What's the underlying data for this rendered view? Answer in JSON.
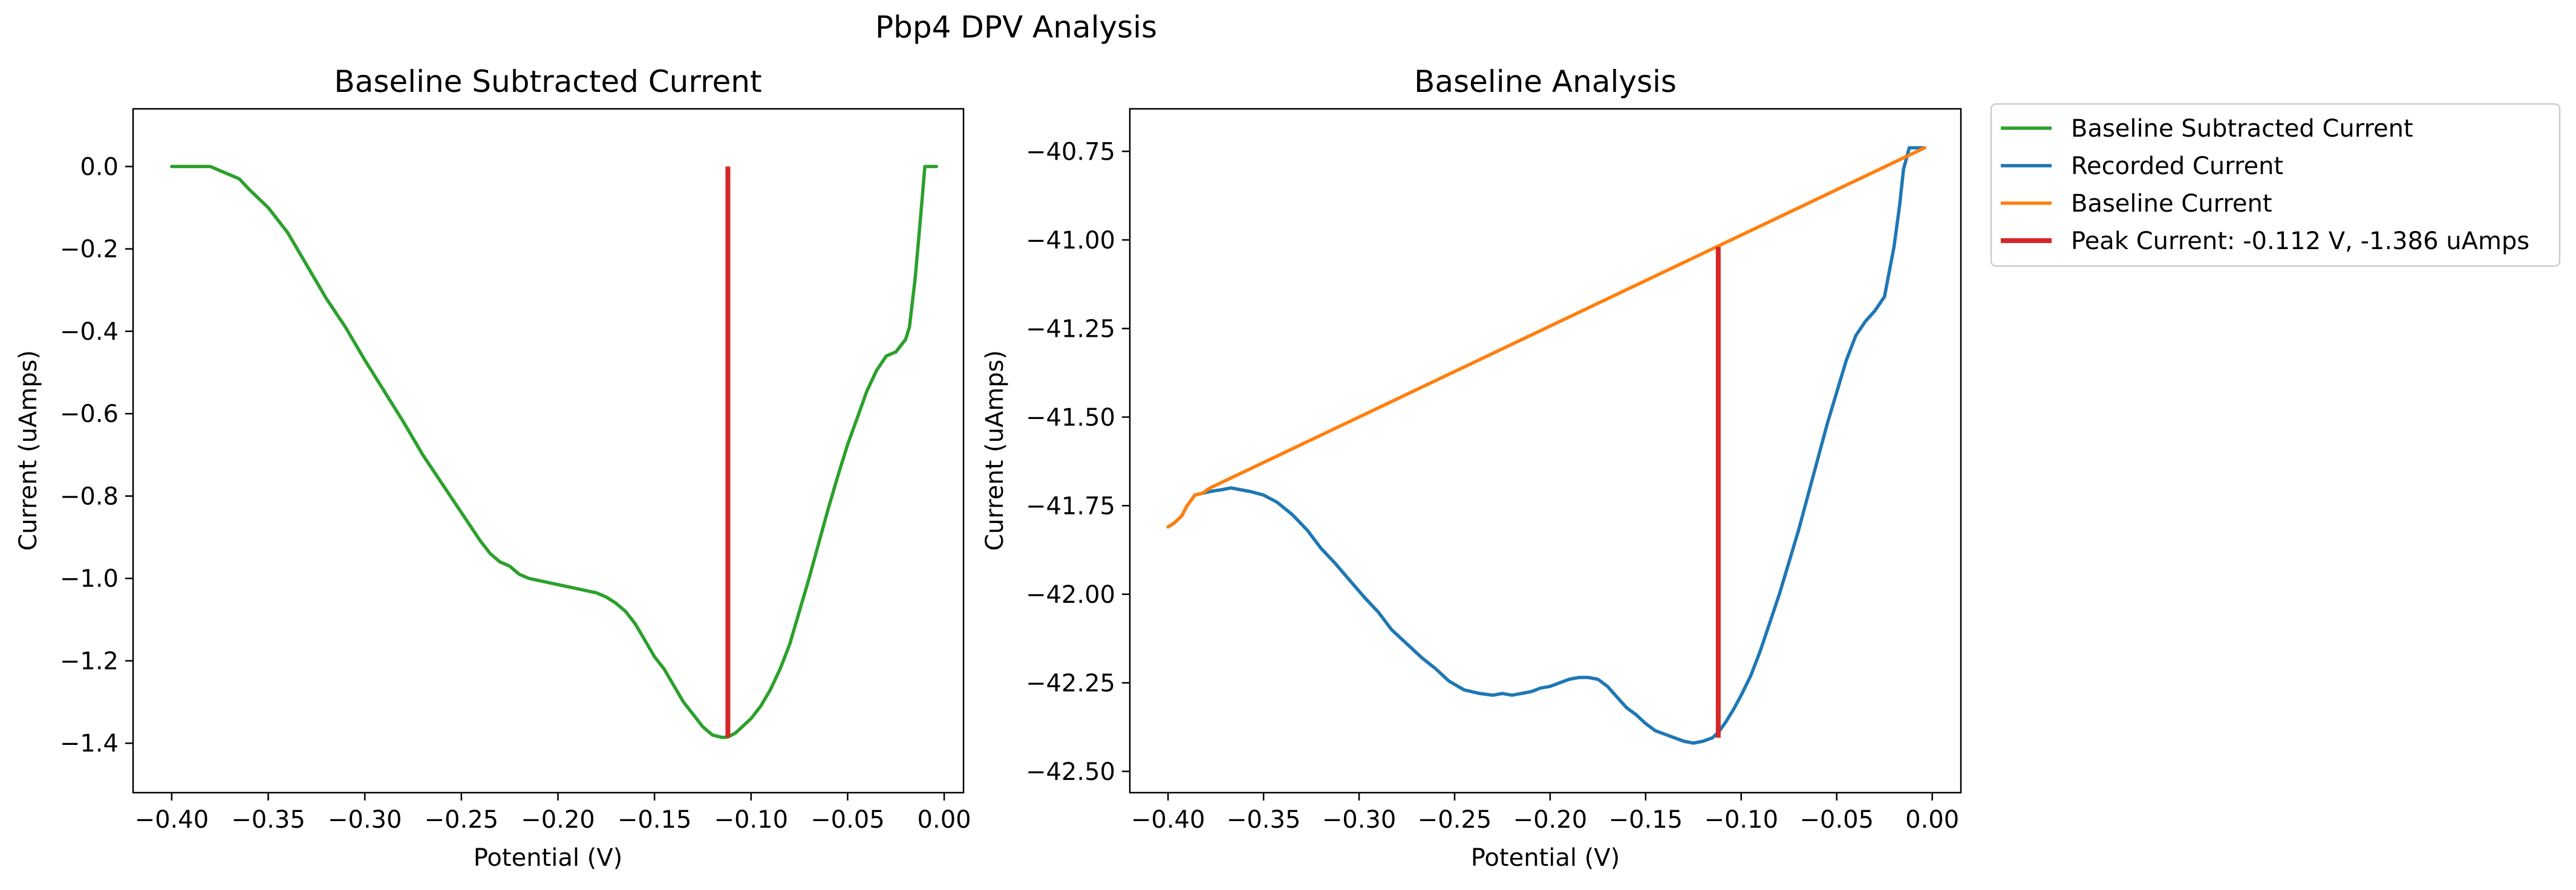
{
  "figure": {
    "suptitle": "Pbp4 DPV Analysis"
  },
  "colors": {
    "baseline_subtracted": "#2ca02c",
    "recorded": "#1f77b4",
    "baseline": "#ff7f0e",
    "peak": "#d62728"
  },
  "legend": {
    "placement": "outside-right-top",
    "entries": [
      {
        "key": "baseline_subtracted",
        "label": "Baseline Subtracted Current",
        "color": "#2ca02c"
      },
      {
        "key": "recorded",
        "label": "Recorded Current",
        "color": "#1f77b4"
      },
      {
        "key": "baseline",
        "label": "Baseline Current",
        "color": "#ff7f0e"
      },
      {
        "key": "peak",
        "label": "Peak Current: -0.112 V, -1.386 uAmps",
        "color": "#d62728"
      }
    ]
  },
  "chart_data": [
    {
      "type": "line",
      "title": "Baseline Subtracted Current",
      "xlabel": "Potential (V)",
      "ylabel": "Current (uAmps)",
      "xlim": [
        -0.42,
        0.01
      ],
      "ylim": [
        -1.52,
        0.14
      ],
      "xticks": [
        -0.4,
        -0.35,
        -0.3,
        -0.25,
        -0.2,
        -0.15,
        -0.1,
        -0.05,
        0.0
      ],
      "xtick_labels": [
        "−0.40",
        "−0.35",
        "−0.30",
        "−0.25",
        "−0.20",
        "−0.15",
        "−0.10",
        "−0.05",
        "0.00"
      ],
      "yticks": [
        0.0,
        -0.2,
        -0.4,
        -0.6,
        -0.8,
        -1.0,
        -1.2,
        -1.4
      ],
      "ytick_labels": [
        "0.0",
        "−0.2",
        "−0.4",
        "−0.6",
        "−0.8",
        "−1.0",
        "−1.2",
        "−1.4"
      ],
      "grid": false,
      "series": [
        {
          "key": "baseline_subtracted",
          "color": "#2ca02c",
          "kind": "line",
          "x": [
            -0.4,
            -0.385,
            -0.38,
            -0.37,
            -0.365,
            -0.36,
            -0.35,
            -0.34,
            -0.33,
            -0.32,
            -0.31,
            -0.3,
            -0.29,
            -0.28,
            -0.27,
            -0.26,
            -0.25,
            -0.24,
            -0.235,
            -0.23,
            -0.225,
            -0.22,
            -0.215,
            -0.21,
            -0.2,
            -0.19,
            -0.18,
            -0.175,
            -0.17,
            -0.165,
            -0.16,
            -0.155,
            -0.15,
            -0.145,
            -0.14,
            -0.135,
            -0.13,
            -0.125,
            -0.12,
            -0.115,
            -0.112,
            -0.108,
            -0.1,
            -0.095,
            -0.09,
            -0.085,
            -0.08,
            -0.075,
            -0.07,
            -0.065,
            -0.06,
            -0.055,
            -0.05,
            -0.045,
            -0.04,
            -0.035,
            -0.03,
            -0.025,
            -0.02,
            -0.018,
            -0.015,
            -0.012,
            -0.01,
            -0.008,
            -0.006,
            -0.004
          ],
          "y": [
            0.0,
            0.0,
            0.0,
            -0.02,
            -0.03,
            -0.055,
            -0.1,
            -0.16,
            -0.24,
            -0.32,
            -0.39,
            -0.47,
            -0.545,
            -0.62,
            -0.7,
            -0.77,
            -0.84,
            -0.91,
            -0.94,
            -0.96,
            -0.97,
            -0.99,
            -1.0,
            -1.005,
            -1.015,
            -1.025,
            -1.035,
            -1.045,
            -1.06,
            -1.08,
            -1.11,
            -1.15,
            -1.19,
            -1.22,
            -1.26,
            -1.3,
            -1.33,
            -1.36,
            -1.38,
            -1.386,
            -1.385,
            -1.375,
            -1.34,
            -1.31,
            -1.27,
            -1.22,
            -1.16,
            -1.08,
            -1.0,
            -0.915,
            -0.83,
            -0.75,
            -0.675,
            -0.61,
            -0.545,
            -0.495,
            -0.46,
            -0.45,
            -0.42,
            -0.39,
            -0.27,
            -0.11,
            0.0,
            0.0,
            0.0,
            0.0
          ]
        },
        {
          "key": "peak",
          "color": "#d62728",
          "kind": "vline",
          "x": -0.112,
          "y_from": -1.386,
          "y_to": 0.0
        }
      ]
    },
    {
      "type": "line",
      "title": "Baseline Analysis",
      "xlabel": "Potential (V)",
      "ylabel": "Current (uAmps)",
      "xlim": [
        -0.42,
        0.015
      ],
      "ylim": [
        -42.56,
        -40.63
      ],
      "xticks": [
        -0.4,
        -0.35,
        -0.3,
        -0.25,
        -0.2,
        -0.15,
        -0.1,
        -0.05,
        0.0
      ],
      "xtick_labels": [
        "−0.40",
        "−0.35",
        "−0.30",
        "−0.25",
        "−0.20",
        "−0.15",
        "−0.10",
        "−0.05",
        "0.00"
      ],
      "yticks": [
        -40.75,
        -41.0,
        -41.25,
        -41.5,
        -41.75,
        -42.0,
        -42.25,
        -42.5
      ],
      "ytick_labels": [
        "−40.75",
        "−41.00",
        "−41.25",
        "−41.50",
        "−41.75",
        "−42.00",
        "−42.25",
        "−42.50"
      ],
      "grid": false,
      "series": [
        {
          "key": "recorded",
          "color": "#1f77b4",
          "kind": "line",
          "x": [
            -0.4,
            -0.397,
            -0.393,
            -0.39,
            -0.386,
            -0.382,
            -0.378,
            -0.372,
            -0.367,
            -0.362,
            -0.357,
            -0.35,
            -0.343,
            -0.335,
            -0.327,
            -0.32,
            -0.313,
            -0.305,
            -0.297,
            -0.29,
            -0.283,
            -0.275,
            -0.267,
            -0.26,
            -0.253,
            -0.245,
            -0.237,
            -0.23,
            -0.225,
            -0.22,
            -0.215,
            -0.21,
            -0.205,
            -0.2,
            -0.195,
            -0.19,
            -0.185,
            -0.18,
            -0.175,
            -0.17,
            -0.165,
            -0.16,
            -0.155,
            -0.15,
            -0.145,
            -0.14,
            -0.135,
            -0.13,
            -0.125,
            -0.12,
            -0.115,
            -0.112,
            -0.108,
            -0.104,
            -0.1,
            -0.095,
            -0.09,
            -0.085,
            -0.08,
            -0.075,
            -0.07,
            -0.065,
            -0.06,
            -0.055,
            -0.05,
            -0.045,
            -0.04,
            -0.035,
            -0.03,
            -0.025,
            -0.02,
            -0.017,
            -0.015,
            -0.012,
            -0.01,
            -0.008,
            -0.006,
            -0.004
          ],
          "y": [
            -41.81,
            -41.8,
            -41.78,
            -41.75,
            -41.72,
            -41.715,
            -41.71,
            -41.705,
            -41.7,
            -41.705,
            -41.71,
            -41.72,
            -41.74,
            -41.775,
            -41.82,
            -41.87,
            -41.91,
            -41.96,
            -42.01,
            -42.05,
            -42.1,
            -42.14,
            -42.18,
            -42.21,
            -42.245,
            -42.27,
            -42.28,
            -42.285,
            -42.28,
            -42.285,
            -42.28,
            -42.275,
            -42.265,
            -42.26,
            -42.25,
            -42.24,
            -42.235,
            -42.235,
            -42.24,
            -42.26,
            -42.29,
            -42.32,
            -42.34,
            -42.365,
            -42.385,
            -42.395,
            -42.405,
            -42.415,
            -42.42,
            -42.415,
            -42.405,
            -42.39,
            -42.36,
            -42.325,
            -42.285,
            -42.23,
            -42.16,
            -42.08,
            -42.0,
            -41.91,
            -41.82,
            -41.72,
            -41.62,
            -41.52,
            -41.43,
            -41.34,
            -41.27,
            -41.23,
            -41.2,
            -41.16,
            -41.02,
            -40.9,
            -40.8,
            -40.74,
            -40.74,
            -40.74,
            -40.74,
            -40.74
          ]
        },
        {
          "key": "baseline",
          "color": "#ff7f0e",
          "kind": "line",
          "x": [
            -0.4,
            -0.397,
            -0.393,
            -0.39,
            -0.386,
            -0.382,
            -0.378,
            -0.004
          ],
          "y": [
            -41.81,
            -41.8,
            -41.78,
            -41.75,
            -41.72,
            -41.715,
            -41.7,
            -40.74
          ]
        },
        {
          "key": "peak",
          "color": "#d62728",
          "kind": "vline",
          "x": -0.112,
          "y_from": -42.405,
          "y_to": -41.02
        }
      ]
    }
  ]
}
